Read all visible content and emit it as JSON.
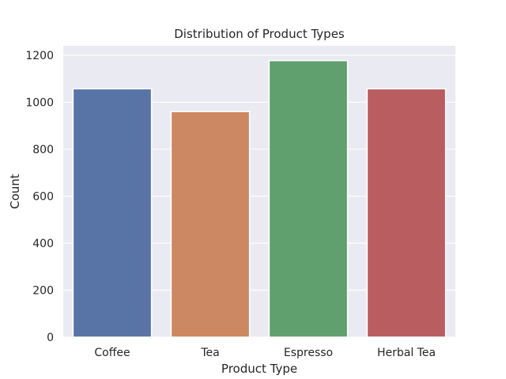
{
  "chart_data": {
    "type": "bar",
    "title": "Distribution of Product Types",
    "xlabel": "Product Type",
    "ylabel": "Count",
    "categories": [
      "Coffee",
      "Tea",
      "Espresso",
      "Herbal Tea"
    ],
    "values": [
      1057,
      960,
      1177,
      1057
    ],
    "ylim": [
      0,
      1240
    ],
    "yticks": [
      0,
      200,
      400,
      600,
      800,
      1000,
      1200
    ],
    "grid": true,
    "legend": "none",
    "colors": [
      "#5874a6",
      "#cc8862",
      "#5fa06e",
      "#b95d61"
    ],
    "background": "#eaeaf2",
    "grid_color": "#ffffff"
  }
}
